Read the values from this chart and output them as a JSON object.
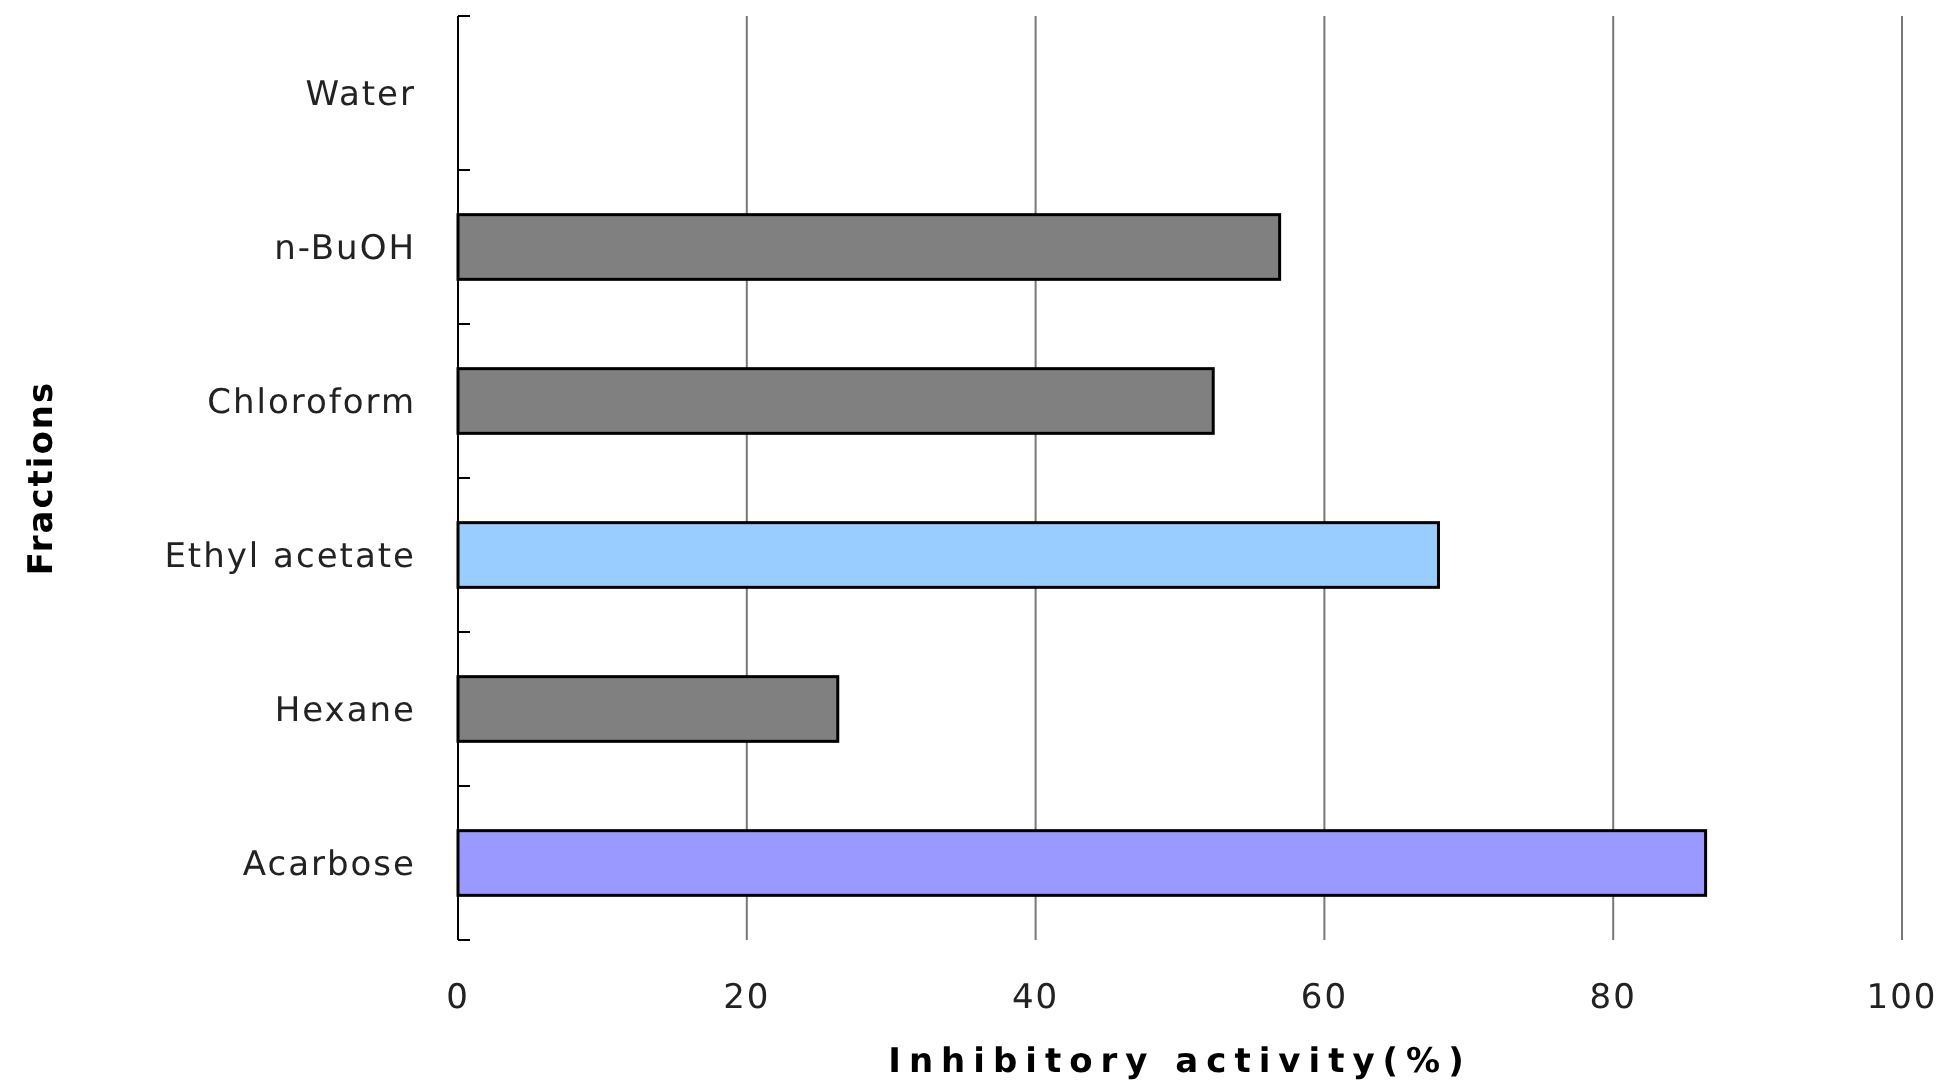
{
  "chart_data": {
    "type": "bar",
    "orientation": "horizontal",
    "xlabel": "Inhibitory activity(%)",
    "ylabel": "Fractions",
    "categories": [
      "Water",
      "n-BuOH",
      "Chloroform",
      "Ethyl acetate",
      "Hexane",
      "Acarbose"
    ],
    "values": [
      0,
      56.9,
      52.3,
      67.9,
      26.3,
      86.4
    ],
    "colors": [
      "#808080",
      "#808080",
      "#808080",
      "#99ccff",
      "#808080",
      "#9999ff"
    ],
    "xlim": [
      0,
      100
    ],
    "xticks": [
      0,
      20,
      40,
      60,
      80,
      100
    ],
    "grid": "x"
  }
}
